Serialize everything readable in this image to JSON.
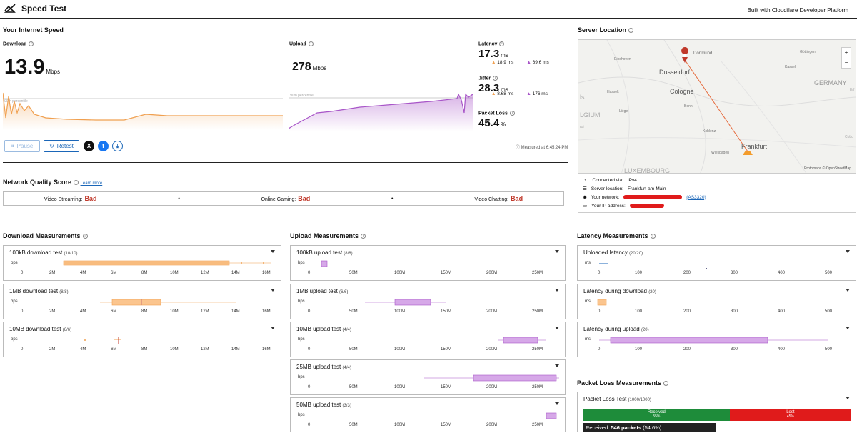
{
  "header": {
    "title": "Speed Test",
    "built_with": "Built with Cloudflare Developer Platform"
  },
  "speed": {
    "title": "Your Internet Speed",
    "download_label": "Download",
    "download_value": "13.9",
    "download_unit": "Mbps",
    "upload_label": "Upload",
    "upload_value": "278",
    "upload_unit": "Mbps",
    "percentile_label": "90th percentile",
    "latency_label": "Latency",
    "latency_value": "17.3",
    "latency_unit": "ms",
    "latency_down": "18.9 ms",
    "latency_up": "69.6 ms",
    "jitter_label": "Jitter",
    "jitter_value": "28.3",
    "jitter_unit": "ms",
    "jitter_down": "8.68 ms",
    "jitter_up": "176 ms",
    "loss_label": "Packet Loss",
    "loss_value": "45.4",
    "loss_unit": "%",
    "measured": "Measured at 6:45:24 PM",
    "pause": "Pause",
    "retest": "Retest"
  },
  "quality": {
    "title": "Network Quality Score",
    "learn_more": "Learn more",
    "items": [
      {
        "label": "Video Streaming:",
        "value": "Bad"
      },
      {
        "label": "Online Gaming:",
        "value": "Bad"
      },
      {
        "label": "Video Chatting:",
        "value": "Bad"
      }
    ]
  },
  "server": {
    "title": "Server Location",
    "cities": [
      "Dortmund",
      "Eindhoven",
      "Dusseldorf",
      "Cologne",
      "Hasselt",
      "Bonn",
      "Liège",
      "Koblenz",
      "Wiesbaden",
      "Frankfurt",
      "Göttingen",
      "Kassel",
      "GERMANY",
      "LUXEMBOURG",
      "LGIUM",
      "ls",
      "roi",
      "Erf",
      "Cobu"
    ],
    "attribution": "Protomaps © OpenStreetMap",
    "zoom_in": "+",
    "zoom_out": "−",
    "connected_label": "Connected via:",
    "connected_value": "IPv4",
    "location_label": "Server location:",
    "location_value": "Frankfurt-am-Main",
    "network_label": "Your network:",
    "network_asn": "(AS3320)",
    "ip_label": "Your IP address:"
  },
  "download_meas": {
    "title": "Download Measurements",
    "ticks": [
      "0",
      "2M",
      "4M",
      "6M",
      "8M",
      "10M",
      "12M",
      "14M",
      "16M"
    ],
    "tests": [
      {
        "name": "100kB download test",
        "count": "(10/10)"
      },
      {
        "name": "1MB download test",
        "count": "(8/8)"
      },
      {
        "name": "10MB download test",
        "count": "(6/6)"
      }
    ]
  },
  "upload_meas": {
    "title": "Upload Measurements",
    "ticks": [
      "0",
      "50M",
      "100M",
      "150M",
      "200M",
      "250M"
    ],
    "tests": [
      {
        "name": "100kB upload test",
        "count": "(8/8)"
      },
      {
        "name": "1MB upload test",
        "count": "(6/6)"
      },
      {
        "name": "10MB upload test",
        "count": "(4/4)"
      },
      {
        "name": "25MB upload test",
        "count": "(4/4)"
      },
      {
        "name": "50MB upload test",
        "count": "(3/3)"
      }
    ]
  },
  "latency_meas": {
    "title": "Latency Measurements",
    "ticks": [
      "0",
      "100",
      "200",
      "300",
      "400",
      "500"
    ],
    "tests": [
      {
        "name": "Unloaded latency",
        "count": "(20/20)"
      },
      {
        "name": "Latency during download",
        "count": "(20)"
      },
      {
        "name": "Latency during upload",
        "count": "(20)"
      }
    ]
  },
  "unit_bps": "bps",
  "unit_ms": "ms",
  "loss_meas": {
    "title": "Packet Loss Measurements",
    "test_name": "Packet Loss Test",
    "count": "(1000/1000)",
    "received_label": "Received",
    "received_pct": "55%",
    "lost_label": "Lost",
    "lost_pct": "45%",
    "tooltip_label": "Received:",
    "tooltip_value": "546 packets",
    "tooltip_pct": "(54.6%)",
    "received_fraction": 0.546
  },
  "colors": {
    "download": "#f0a050",
    "upload": "#a855c8",
    "received": "#1e8c3a",
    "lost": "#e01b1b",
    "accent": "#1a66b8"
  }
}
